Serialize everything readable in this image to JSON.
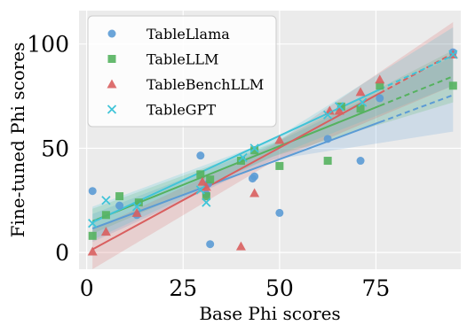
{
  "chart_data": {
    "type": "scatter",
    "xlabel": "Base Phi scores",
    "ylabel": "Fine-tuned Phi scores",
    "xlim": [
      -2,
      97
    ],
    "ylim": [
      -8,
      116
    ],
    "x_ticks": [
      0,
      25,
      50,
      75
    ],
    "y_ticks": [
      0,
      50,
      100
    ],
    "grid": true,
    "legend_position": "top-left",
    "series": [
      {
        "name": "TableLlama",
        "marker": "circle",
        "color": "#5b9bd5",
        "points": [
          [
            1.5,
            29.5
          ],
          [
            8.5,
            22.5
          ],
          [
            13,
            18
          ],
          [
            29.5,
            46.5
          ],
          [
            31,
            28
          ],
          [
            31.5,
            33
          ],
          [
            32,
            4
          ],
          [
            43,
            35.5
          ],
          [
            43.5,
            36.5
          ],
          [
            50,
            19
          ],
          [
            62.5,
            54.5
          ],
          [
            71,
            44
          ],
          [
            76,
            74
          ],
          [
            95,
            96
          ]
        ],
        "fit": {
          "start": [
            1.5,
            11.5
          ],
          "end": [
            95,
            75.5
          ],
          "band_low_start": 5.0,
          "band_high_start": 18.5,
          "band_low_mid": 44.5,
          "band_high_mid": 52.0,
          "band_low_end": 58.0,
          "band_high_end": 94.0
        }
      },
      {
        "name": "TableLLM",
        "marker": "square",
        "color": "#55b25f",
        "points": [
          [
            1.5,
            8
          ],
          [
            5,
            18
          ],
          [
            8.5,
            27
          ],
          [
            13.5,
            24
          ],
          [
            29.5,
            37.5
          ],
          [
            31,
            27
          ],
          [
            32,
            35
          ],
          [
            40,
            44
          ],
          [
            43.5,
            49
          ],
          [
            50,
            41.5
          ],
          [
            62.5,
            44
          ],
          [
            66,
            70
          ],
          [
            71,
            69
          ],
          [
            76,
            80
          ],
          [
            95,
            80
          ]
        ],
        "fit": {
          "start": [
            1.5,
            15
          ],
          "end": [
            95,
            84.5
          ],
          "band_low_start": 9.0,
          "band_high_start": 21.0,
          "band_low_mid": 46.0,
          "band_high_mid": 52.5,
          "band_low_end": 72.0,
          "band_high_end": 97.0
        }
      },
      {
        "name": "TableBenchLLM",
        "marker": "triangle",
        "color": "#d95f5f",
        "points": [
          [
            1.5,
            0.5
          ],
          [
            5,
            10
          ],
          [
            13,
            19
          ],
          [
            30,
            34
          ],
          [
            31,
            31.5
          ],
          [
            40,
            3
          ],
          [
            43.5,
            28.5
          ],
          [
            50,
            54
          ],
          [
            63,
            68
          ],
          [
            65.5,
            68
          ],
          [
            71,
            77
          ],
          [
            76,
            83
          ],
          [
            95,
            95
          ]
        ],
        "fit": {
          "start": [
            1.5,
            1.5
          ],
          "end": [
            95,
            95.5
          ],
          "band_low_start": -8.0,
          "band_high_start": 11.0,
          "band_low_mid": 43.5,
          "band_high_mid": 51.5,
          "band_low_end": 80.0,
          "band_high_end": 110.5
        }
      },
      {
        "name": "TableGPT",
        "marker": "x",
        "color": "#40c4d8",
        "points": [
          [
            1.5,
            14
          ],
          [
            5,
            25
          ],
          [
            13,
            22
          ],
          [
            29.5,
            30
          ],
          [
            31,
            24
          ],
          [
            40.5,
            45.5
          ],
          [
            43.5,
            50
          ],
          [
            62.5,
            66
          ],
          [
            65.5,
            70
          ],
          [
            71.5,
            72
          ],
          [
            95,
            95
          ]
        ],
        "fit": {
          "start": [
            1.5,
            14.5
          ],
          "end": [
            95,
            94.5
          ],
          "band_low_start": 6.0,
          "band_high_start": 22.0,
          "band_low_mid": 46.0,
          "band_high_mid": 54.0,
          "band_low_end": 80.0,
          "band_high_end": 108.0
        }
      }
    ]
  }
}
